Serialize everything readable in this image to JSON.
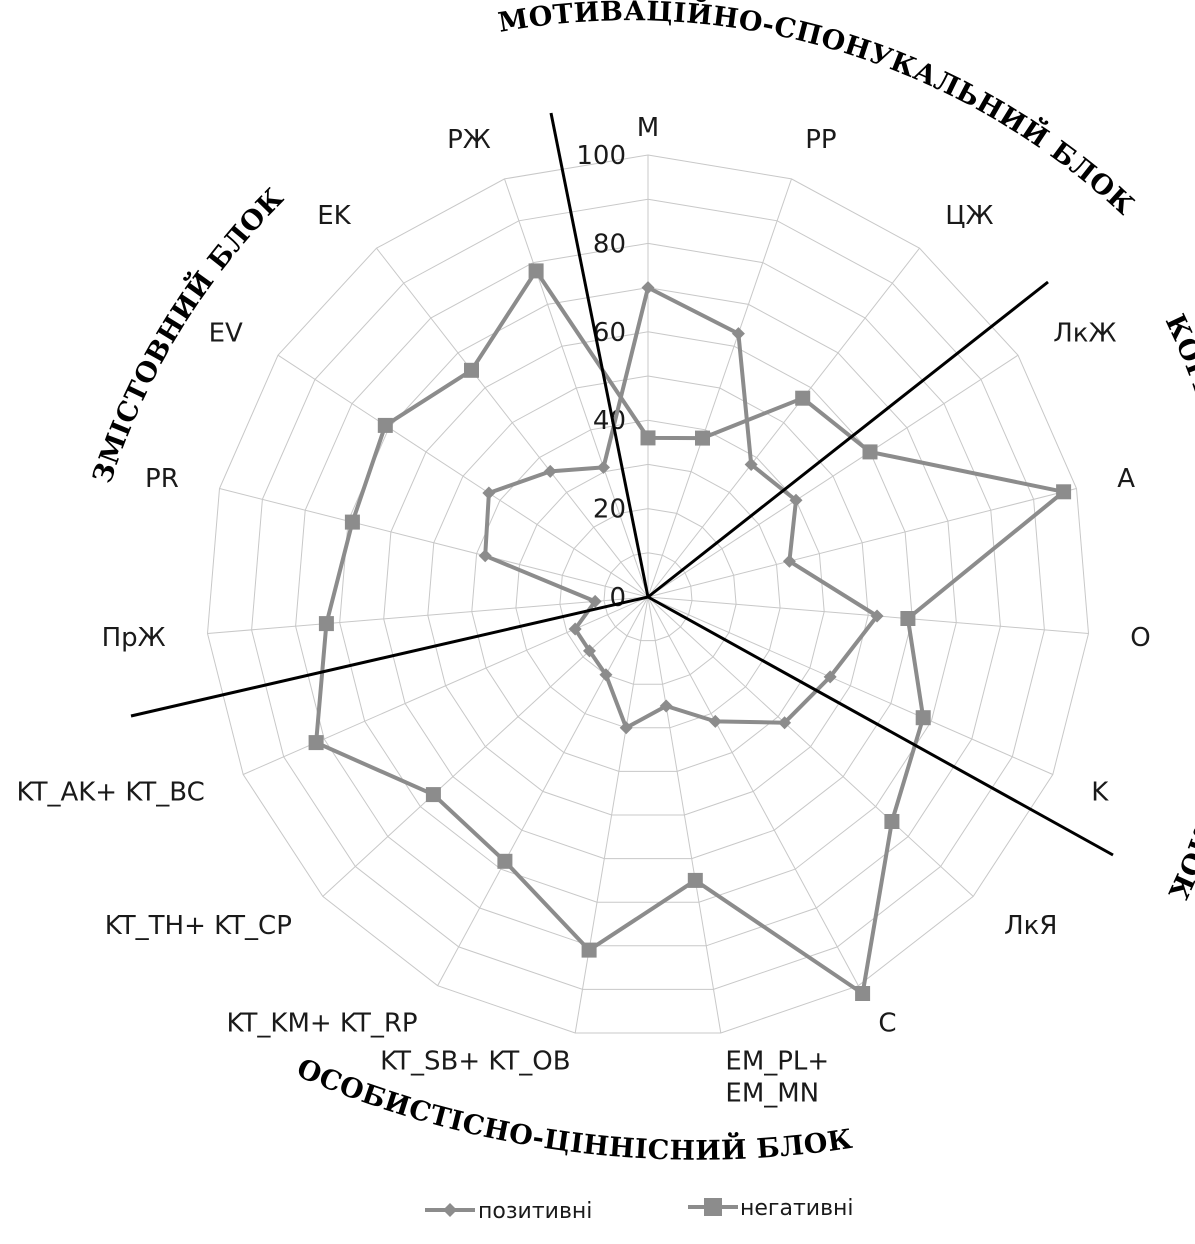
{
  "chart_data": {
    "type": "radar",
    "categories": [
      "M",
      "PP",
      "ЦЖ",
      "ЛкЖ",
      "A",
      "O",
      "K",
      "ЛкЯ",
      "C",
      "EM_PL+\nEM_MN",
      "KT_SB+ KT_OB",
      "KT_KM+ KT_RP",
      "KT_TH+ KT_CP",
      "KT_AK+ KT_BC",
      "ПрЖ",
      "PR",
      "EV",
      "EK",
      "РЖ"
    ],
    "r_ticks": [
      0,
      20,
      40,
      60,
      80,
      100
    ],
    "rlim": [
      0,
      100
    ],
    "grid": true,
    "series": [
      {
        "name": "позитивні",
        "marker": "diamond",
        "color": "#8c8c8c",
        "values": [
          70,
          63,
          38,
          40,
          33,
          52,
          45,
          42,
          32,
          25,
          30,
          20,
          18,
          18,
          12,
          38,
          43,
          36,
          31
        ]
      },
      {
        "name": "негативні",
        "marker": "square",
        "color": "#8c8c8c",
        "values": [
          36,
          38,
          57,
          60,
          97,
          59,
          68,
          75,
          102,
          65,
          81,
          68,
          66,
          82,
          73,
          69,
          71,
          65,
          78
        ]
      }
    ],
    "legend_position": "bottom",
    "block_labels": [
      "МОТИВАЦІЙНО-СПОНУКАЛЬНИЙ БЛОК",
      "КОГНІТИВНО-ДІЯЛЬНІСНИЙ БЛОК",
      "ОСОБИСТІСНО-ЦІННІСНИЙ БЛОК",
      "ЗМІСТОВНИЙ БЛОК"
    ]
  }
}
